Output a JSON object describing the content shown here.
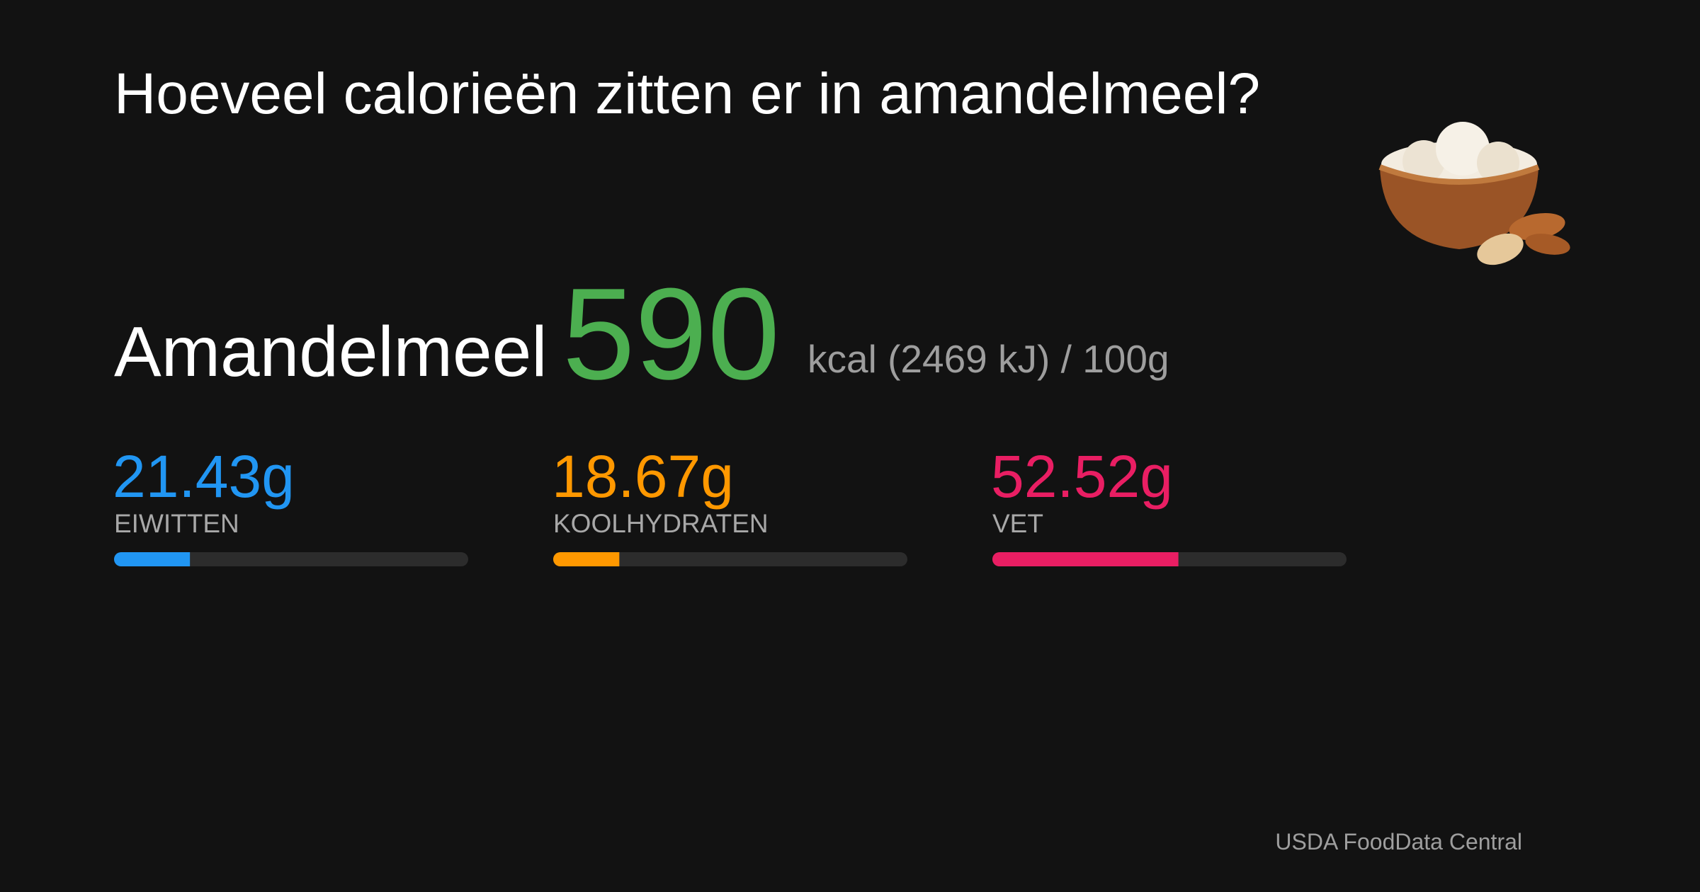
{
  "header": {
    "title": "Hoeveel calorieën zitten er in amandelmeel?"
  },
  "food": {
    "name": "Amandelmeel",
    "kcal": "590",
    "energy_text": "kcal (2469 kJ) / 100g"
  },
  "macros": {
    "xlim": [
      0,
      100
    ],
    "items": [
      {
        "name": "EIWITTEN",
        "value": 21.43,
        "value_label": "21.43g",
        "color": "#2196f3"
      },
      {
        "name": "KOOLHYDRATEN",
        "value": 18.67,
        "value_label": "18.67g",
        "color": "#ff9800"
      },
      {
        "name": "VET",
        "value": 52.52,
        "value_label": "52.52g",
        "color": "#e91e63"
      }
    ]
  },
  "footer": {
    "source": "USDA FoodData Central"
  }
}
